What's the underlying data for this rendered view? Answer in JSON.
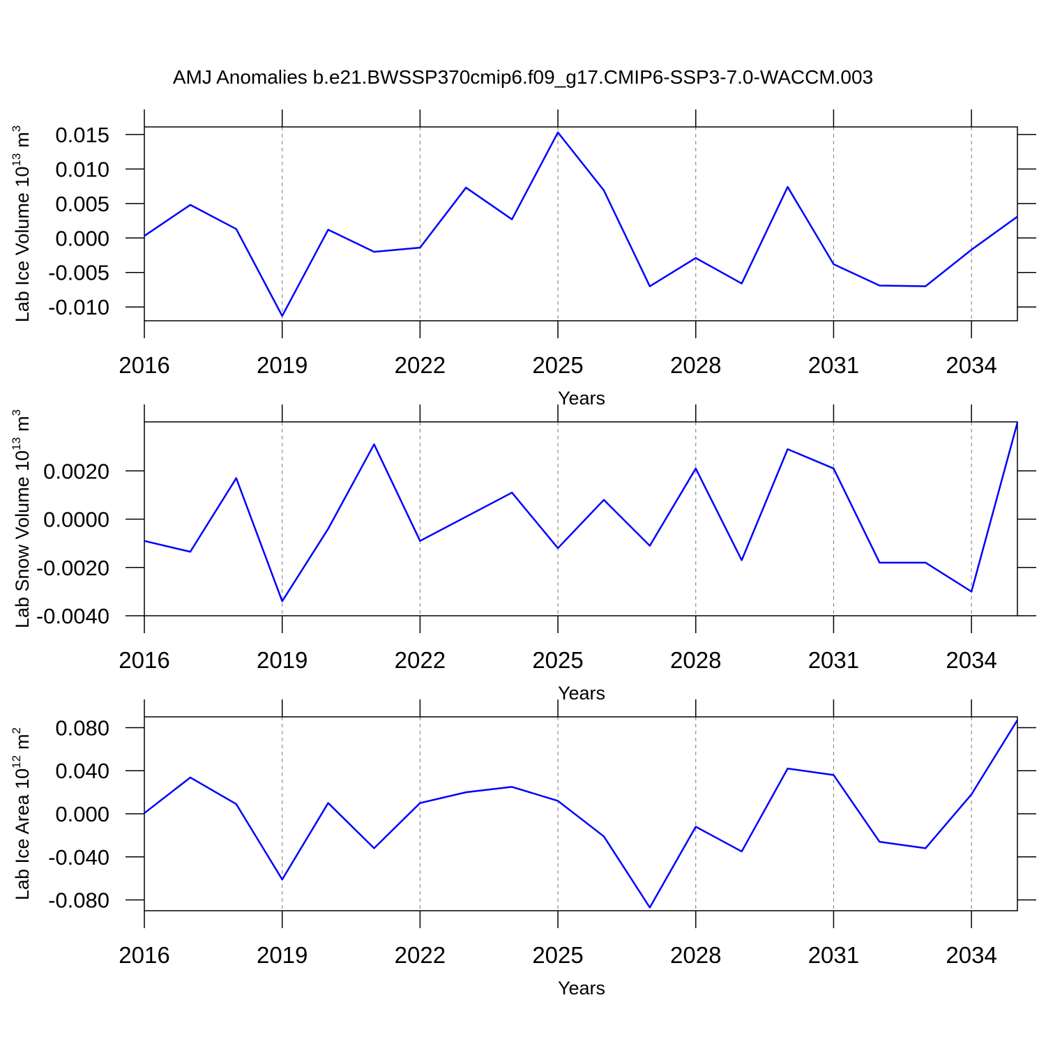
{
  "chart_data": [
    {
      "type": "line",
      "title": "AMJ Anomalies b.e21.BWSSP370cmip6.f09_g17.CMIP6-SSP3-7.0-WACCM.003",
      "ylabel": {
        "text": "Lab Ice Volume 10",
        "exponent": "13",
        "unit": "m",
        "unit_exponent": "3"
      },
      "xlabel": "Years",
      "x": [
        2016,
        2017,
        2018,
        2019,
        2020,
        2021,
        2022,
        2023,
        2024,
        2025,
        2026,
        2027,
        2028,
        2029,
        2030,
        2031,
        2032,
        2033,
        2034,
        2035
      ],
      "series": [
        {
          "color": "#0000ff",
          "values": [
            0.0003,
            0.0048,
            0.0013,
            -0.0113,
            0.0012,
            -0.002,
            -0.0014,
            0.0073,
            0.0027,
            0.0153,
            0.0069,
            -0.007,
            -0.0029,
            -0.0066,
            0.0074,
            -0.0038,
            -0.0069,
            -0.007,
            -0.0017,
            0.0031
          ]
        }
      ],
      "xlim": [
        2016,
        2035
      ],
      "xticks": [
        2016,
        2019,
        2022,
        2025,
        2028,
        2031,
        2034
      ],
      "ylim": [
        -0.012,
        0.0161
      ],
      "yticks": [
        {
          "value": 0.015,
          "label": "0.015"
        },
        {
          "value": 0.01,
          "label": "0.010"
        },
        {
          "value": 0.005,
          "label": "0.005"
        },
        {
          "value": 0,
          "label": "0.000"
        },
        {
          "value": -0.005,
          "label": "-0.005"
        },
        {
          "value": -0.01,
          "label": "-0.010"
        }
      ],
      "xgrid": true
    },
    {
      "type": "line",
      "ylabel": {
        "text": "Lab Snow Volume 10",
        "exponent": "13",
        "unit": "m",
        "unit_exponent": "3"
      },
      "xlabel": "Years",
      "x": [
        2016,
        2017,
        2018,
        2019,
        2020,
        2021,
        2022,
        2023,
        2024,
        2025,
        2026,
        2027,
        2028,
        2029,
        2030,
        2031,
        2032,
        2033,
        2034,
        2035
      ],
      "series": [
        {
          "color": "#0000ff",
          "values": [
            -0.0009,
            -0.00135,
            0.0017,
            -0.0034,
            -0.0004,
            0.0031,
            -0.0009,
            0.0001,
            0.0011,
            -0.0012,
            0.0008,
            -0.0011,
            0.0021,
            -0.0017,
            0.0029,
            0.0021,
            -0.0018,
            -0.0018,
            -0.003,
            0.004
          ]
        }
      ],
      "xlim": [
        2016,
        2035
      ],
      "xticks": [
        2016,
        2019,
        2022,
        2025,
        2028,
        2031,
        2034
      ],
      "ylim": [
        -0.004,
        0.00403
      ],
      "yticks": [
        {
          "value": 0.002,
          "label": "0.0020"
        },
        {
          "value": 0,
          "label": "0.0000"
        },
        {
          "value": -0.002,
          "label": "-0.0020"
        },
        {
          "value": -0.004,
          "label": "-0.0040"
        }
      ],
      "xgrid": true
    },
    {
      "type": "line",
      "ylabel": {
        "text": "Lab Ice Area 10",
        "exponent": "12",
        "unit": "m",
        "unit_exponent": "2"
      },
      "xlabel": "Years",
      "x": [
        2016,
        2017,
        2018,
        2019,
        2020,
        2021,
        2022,
        2023,
        2024,
        2025,
        2026,
        2027,
        2028,
        2029,
        2030,
        2031,
        2032,
        2033,
        2034,
        2035
      ],
      "series": [
        {
          "color": "#0000ff",
          "values": [
            0.0006,
            0.0337,
            0.009,
            -0.061,
            0.01,
            -0.032,
            0.01,
            0.02,
            0.025,
            0.012,
            -0.021,
            -0.087,
            -0.012,
            -0.035,
            0.042,
            0.036,
            -0.026,
            -0.032,
            0.018,
            0.087
          ]
        }
      ],
      "xlim": [
        2016,
        2035
      ],
      "xticks": [
        2016,
        2019,
        2022,
        2025,
        2028,
        2031,
        2034
      ],
      "ylim": [
        -0.09,
        0.09
      ],
      "yticks": [
        {
          "value": 0.08,
          "label": "0.080"
        },
        {
          "value": 0.04,
          "label": "0.040"
        },
        {
          "value": 0,
          "label": "0.000"
        },
        {
          "value": -0.04,
          "label": "-0.040"
        },
        {
          "value": -0.08,
          "label": "-0.080"
        }
      ],
      "xgrid": true
    }
  ]
}
